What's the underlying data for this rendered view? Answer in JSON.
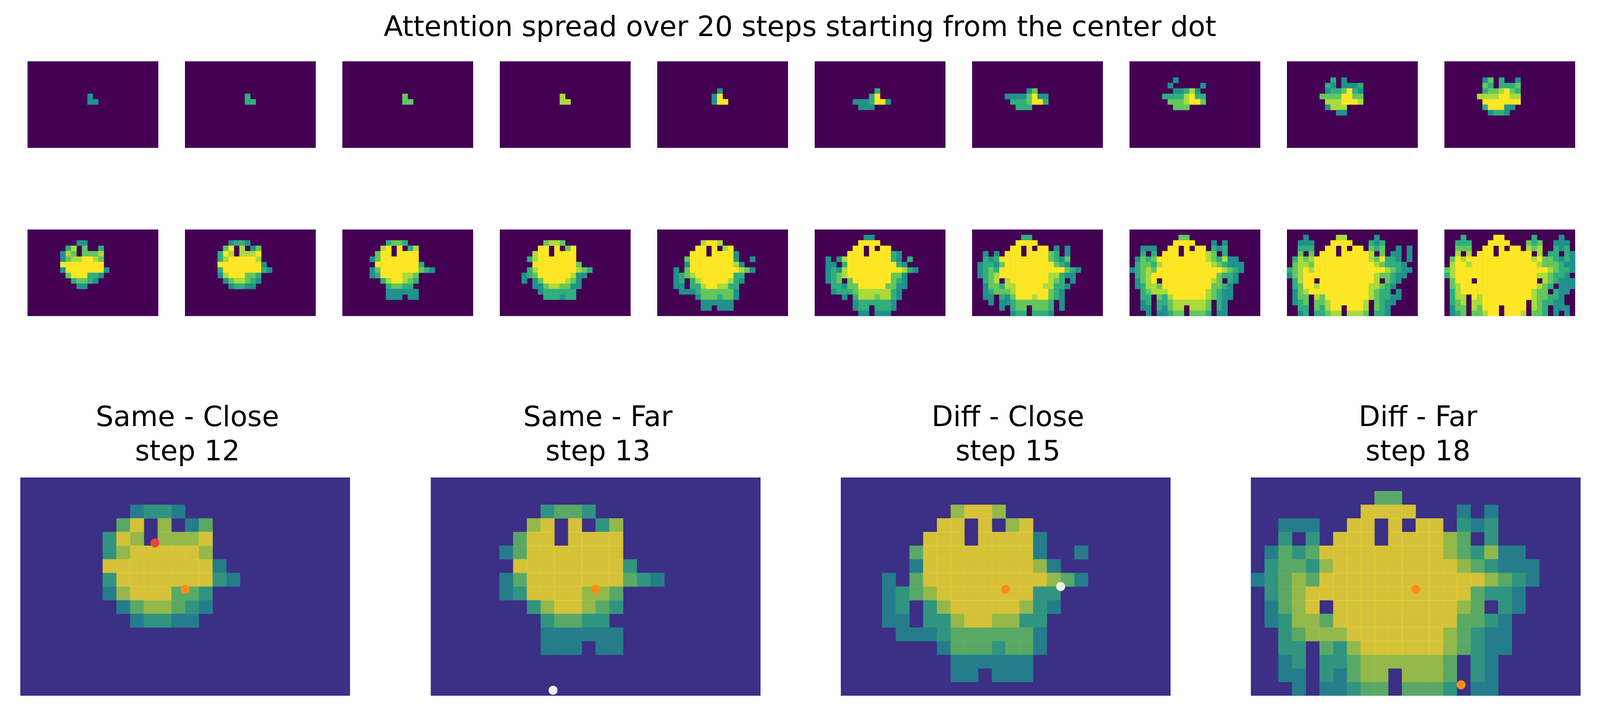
{
  "chart_data": {
    "type": "heatmap",
    "title": "Attention spread over 20 steps starting from the center dot",
    "steps": [
      1,
      2,
      3,
      4,
      5,
      6,
      7,
      8,
      9,
      10,
      11,
      12,
      13,
      14,
      15,
      16,
      17,
      18,
      19,
      20
    ],
    "activation_step": [
      [
        0,
        0,
        0,
        0,
        0,
        0,
        0,
        0,
        0,
        0,
        0,
        0,
        0,
        0,
        0,
        0,
        0,
        0,
        0,
        0,
        0,
        0,
        0,
        0
      ],
      [
        0,
        0,
        0,
        19,
        0,
        0,
        0,
        0,
        0,
        16,
        16,
        0,
        0,
        0,
        0,
        0,
        19,
        0,
        0,
        0,
        0,
        20,
        0,
        0
      ],
      [
        0,
        0,
        19,
        19,
        19,
        0,
        0,
        0,
        12,
        11,
        11,
        12,
        0,
        0,
        0,
        18,
        19,
        18,
        0,
        0,
        20,
        20,
        20,
        0
      ],
      [
        0,
        0,
        18,
        18,
        18,
        0,
        0,
        10,
        8,
        0,
        9,
        0,
        12,
        10,
        0,
        17,
        18,
        17,
        0,
        0,
        19,
        20,
        19,
        0
      ],
      [
        0,
        0,
        17,
        0,
        17,
        0,
        11,
        8,
        9,
        0,
        9,
        9,
        9,
        8,
        15,
        16,
        0,
        17,
        0,
        19,
        19,
        0,
        19,
        20
      ],
      [
        0,
        18,
        16,
        17,
        16,
        13,
        11,
        9,
        8,
        8,
        7,
        5,
        8,
        9,
        15,
        16,
        17,
        15,
        18,
        18,
        19,
        20,
        19,
        20
      ],
      [
        0,
        17,
        16,
        16,
        17,
        15,
        7,
        7,
        7,
        7,
        5,
        1,
        7,
        7,
        12,
        15,
        16,
        17,
        18,
        18,
        18,
        19,
        20,
        20
      ],
      [
        18,
        17,
        16,
        15,
        16,
        13,
        11,
        6,
        6,
        6,
        5,
        1,
        1,
        6,
        11,
        12,
        13,
        15,
        16,
        17,
        18,
        19,
        19,
        20
      ],
      [
        19,
        17,
        16,
        15,
        14,
        13,
        12,
        9,
        6,
        6,
        6,
        10,
        10,
        11,
        14,
        14,
        16,
        17,
        17,
        18,
        19,
        19,
        20,
        0
      ],
      [
        0,
        18,
        16,
        15,
        14,
        0,
        14,
        12,
        10,
        9,
        9,
        10,
        11,
        12,
        14,
        15,
        16,
        0,
        17,
        18,
        19,
        20,
        20,
        20
      ],
      [
        0,
        18,
        17,
        15,
        15,
        16,
        14,
        14,
        12,
        11,
        11,
        12,
        12,
        14,
        14,
        16,
        16,
        17,
        18,
        19,
        0,
        20,
        20,
        20
      ],
      [
        0,
        19,
        17,
        16,
        15,
        15,
        15,
        14,
        13,
        13,
        13,
        13,
        13,
        13,
        15,
        16,
        17,
        18,
        18,
        0,
        19,
        20,
        20,
        0
      ],
      [
        0,
        19,
        17,
        17,
        0,
        16,
        17,
        15,
        13,
        13,
        13,
        14,
        13,
        13,
        15,
        16,
        17,
        18,
        18,
        19,
        19,
        20,
        0,
        0
      ],
      [
        0,
        19,
        18,
        17,
        0,
        17,
        17,
        16,
        15,
        15,
        15,
        15,
        15,
        15,
        16,
        0,
        17,
        18,
        19,
        19,
        20,
        20,
        0,
        0
      ],
      [
        0,
        20,
        18,
        18,
        0,
        17,
        18,
        16,
        15,
        15,
        0,
        15,
        15,
        15,
        16,
        0,
        17,
        18,
        19,
        0,
        20,
        20,
        20,
        0
      ],
      [
        0,
        20,
        19,
        18,
        0,
        18,
        18,
        17,
        16,
        16,
        0,
        16,
        16,
        16,
        17,
        0,
        18,
        18,
        19,
        0,
        20,
        0,
        20,
        0
      ]
    ],
    "start_point": {
      "x": 11.5,
      "y": 7.7,
      "color": "#ff8c1a"
    },
    "panels": [
      {
        "title": "Same - Close",
        "step_label": "step 12",
        "step": 12,
        "target": {
          "x": 9.3,
          "y": 4.3,
          "color": "#e8453c"
        }
      },
      {
        "title": "Same - Far",
        "step_label": "step 13",
        "step": 13,
        "target": {
          "x": 8.4,
          "y": 15.1,
          "color": "#f2f2f2"
        }
      },
      {
        "title": "Diff - Close",
        "step_label": "step 15",
        "step": 15,
        "target": {
          "x": 15.5,
          "y": 7.5,
          "color": "#f2f2f2"
        }
      },
      {
        "title": "Diff - Far",
        "step_label": "step 18",
        "step": 18,
        "target": {
          "x": 14.8,
          "y": 14.7,
          "color": "#ff8c1a"
        }
      }
    ]
  }
}
